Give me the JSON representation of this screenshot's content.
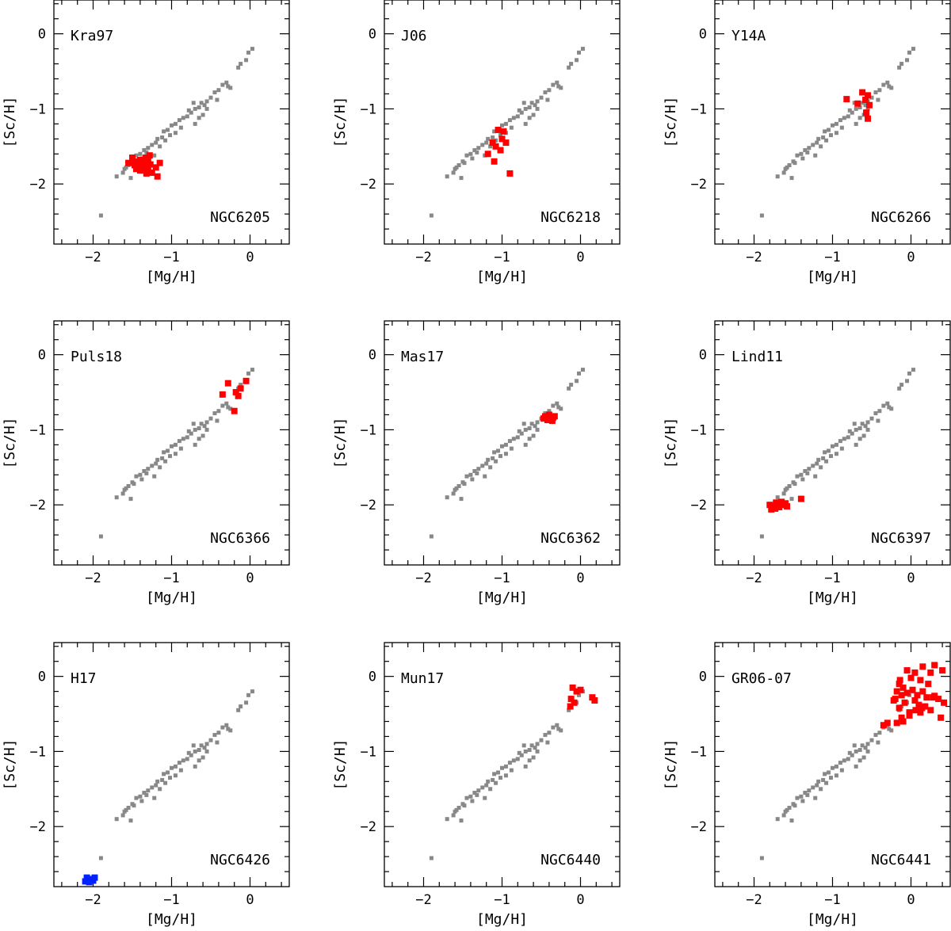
{
  "figure": {
    "xlabel": "[Mg/H]",
    "ylabel": "[Sc/H]",
    "background_color": "#888888",
    "highlight_color": "#ff0000",
    "alt_highlight_color": "#0022ff"
  },
  "chart_data": [
    {
      "type": "scatter",
      "panel_label": "Kra97",
      "cluster": "NGC6205",
      "xlabel": "[Mg/H]",
      "ylabel": "[Sc/H]",
      "xlim": [
        -2.5,
        0.5
      ],
      "ylim": [
        -2.8,
        0.45
      ],
      "xticks": [
        -2,
        -1,
        0
      ],
      "yticks": [
        0,
        -1,
        -2
      ],
      "grid": false,
      "series": [
        {
          "color": "#ff0000",
          "x": [
            -1.55,
            -1.5,
            -1.47,
            -1.43,
            -1.4,
            -1.37,
            -1.35,
            -1.33,
            -1.3,
            -1.28,
            -1.45,
            -1.4,
            -1.33,
            -1.27,
            -1.2,
            -1.25,
            -1.37,
            -1.32,
            -1.15,
            -1.18,
            -1.3,
            -1.42,
            -1.48,
            -1.35
          ],
          "y": [
            -1.72,
            -1.65,
            -1.75,
            -1.7,
            -1.68,
            -1.78,
            -1.72,
            -1.65,
            -1.7,
            -1.62,
            -1.8,
            -1.82,
            -1.76,
            -1.74,
            -1.78,
            -1.85,
            -1.7,
            -1.86,
            -1.72,
            -1.9,
            -1.8,
            -1.75,
            -1.72,
            -1.68
          ]
        }
      ]
    },
    {
      "type": "scatter",
      "panel_label": "J06",
      "cluster": "NGC6218",
      "xlabel": "[Mg/H]",
      "ylabel": "[Sc/H]",
      "xlim": [
        -2.5,
        0.5
      ],
      "ylim": [
        -2.8,
        0.45
      ],
      "xticks": [
        -2,
        -1,
        0
      ],
      "yticks": [
        0,
        -1,
        -2
      ],
      "grid": false,
      "series": [
        {
          "color": "#ff0000",
          "x": [
            -1.05,
            -0.98,
            -1.12,
            -1.0,
            -1.08,
            -0.95,
            -1.18,
            -1.02,
            -1.1,
            -0.9
          ],
          "y": [
            -1.28,
            -1.3,
            -1.45,
            -1.4,
            -1.5,
            -1.45,
            -1.6,
            -1.55,
            -1.7,
            -1.86
          ]
        }
      ]
    },
    {
      "type": "scatter",
      "panel_label": "Y14A",
      "cluster": "NGC6266",
      "xlabel": "[Mg/H]",
      "ylabel": "[Sc/H]",
      "xlim": [
        -2.5,
        0.5
      ],
      "ylim": [
        -2.8,
        0.45
      ],
      "xticks": [
        -2,
        -1,
        0
      ],
      "yticks": [
        0,
        -1,
        -2
      ],
      "grid": false,
      "series": [
        {
          "color": "#ff0000",
          "x": [
            -0.62,
            -0.55,
            -0.58,
            -0.68,
            -0.82,
            -0.53,
            -0.57,
            -0.55
          ],
          "y": [
            -0.78,
            -0.82,
            -0.88,
            -0.93,
            -0.87,
            -0.95,
            -1.05,
            -1.13
          ]
        }
      ]
    },
    {
      "type": "scatter",
      "panel_label": "Puls18",
      "cluster": "NGC6366",
      "xlabel": "[Mg/H]",
      "ylabel": "[Sc/H]",
      "xlim": [
        -2.5,
        0.5
      ],
      "ylim": [
        -2.8,
        0.45
      ],
      "xticks": [
        -2,
        -1,
        0
      ],
      "yticks": [
        0,
        -1,
        -2
      ],
      "grid": false,
      "series": [
        {
          "color": "#ff0000",
          "x": [
            -0.05,
            -0.28,
            -0.12,
            -0.18,
            -0.35,
            -0.15,
            -0.2
          ],
          "y": [
            -0.35,
            -0.38,
            -0.45,
            -0.5,
            -0.53,
            -0.55,
            -0.75
          ]
        }
      ]
    },
    {
      "type": "scatter",
      "panel_label": "Mas17",
      "cluster": "NGC6362",
      "xlabel": "[Mg/H]",
      "ylabel": "[Sc/H]",
      "xlim": [
        -2.5,
        0.5
      ],
      "ylim": [
        -2.8,
        0.45
      ],
      "xticks": [
        -2,
        -1,
        0
      ],
      "yticks": [
        0,
        -1,
        -2
      ],
      "grid": false,
      "series": [
        {
          "color": "#ff0000",
          "x": [
            -0.45,
            -0.4,
            -0.35,
            -0.42,
            -0.38,
            -0.33,
            -0.47,
            -0.36,
            -0.41
          ],
          "y": [
            -0.82,
            -0.8,
            -0.84,
            -0.87,
            -0.85,
            -0.82,
            -0.85,
            -0.88,
            -0.84
          ]
        }
      ]
    },
    {
      "type": "scatter",
      "panel_label": "Lind11",
      "cluster": "NGC6397",
      "xlabel": "[Mg/H]",
      "ylabel": "[Sc/H]",
      "xlim": [
        -2.5,
        0.5
      ],
      "ylim": [
        -2.8,
        0.45
      ],
      "xticks": [
        -2,
        -1,
        0
      ],
      "yticks": [
        0,
        -1,
        -2
      ],
      "grid": false,
      "series": [
        {
          "color": "#ff0000",
          "x": [
            -1.8,
            -1.75,
            -1.7,
            -1.65,
            -1.62,
            -1.58,
            -1.73,
            -1.68,
            -1.78,
            -1.6,
            -1.66,
            -1.72,
            -1.4
          ],
          "y": [
            -2.0,
            -2.02,
            -1.98,
            -1.96,
            -2.0,
            -2.02,
            -2.05,
            -2.03,
            -2.06,
            -1.98,
            -2.0,
            -1.97,
            -1.92
          ]
        }
      ]
    },
    {
      "type": "scatter",
      "panel_label": "H17",
      "cluster": "NGC6426",
      "xlabel": "[Mg/H]",
      "ylabel": "[Sc/H]",
      "xlim": [
        -2.5,
        0.5
      ],
      "ylim": [
        -2.8,
        0.45
      ],
      "xticks": [
        -2,
        -1,
        0
      ],
      "yticks": [
        0,
        -1,
        -2
      ],
      "grid": false,
      "series": [
        {
          "color": "#0022ff",
          "x": [
            -2.08,
            -2.03,
            -1.98,
            -2.1,
            -2.05,
            -2.0
          ],
          "y": [
            -2.68,
            -2.7,
            -2.68,
            -2.73,
            -2.74,
            -2.72
          ]
        }
      ]
    },
    {
      "type": "scatter",
      "panel_label": "Mun17",
      "cluster": "NGC6440",
      "xlabel": "[Mg/H]",
      "ylabel": "[Sc/H]",
      "xlim": [
        -2.5,
        0.5
      ],
      "ylim": [
        -2.8,
        0.45
      ],
      "xticks": [
        -2,
        -1,
        0
      ],
      "yticks": [
        0,
        -1,
        -2
      ],
      "grid": false,
      "series": [
        {
          "color": "#ff0000",
          "x": [
            -0.1,
            -0.05,
            0.0,
            0.15,
            -0.12,
            -0.08,
            0.18,
            -0.13
          ],
          "y": [
            -0.15,
            -0.2,
            -0.18,
            -0.28,
            -0.3,
            -0.35,
            -0.32,
            -0.4
          ]
        }
      ]
    },
    {
      "type": "scatter",
      "panel_label": "GR06-07",
      "cluster": "NGC6441",
      "xlabel": "[Mg/H]",
      "ylabel": "[Sc/H]",
      "xlim": [
        -2.5,
        0.5
      ],
      "ylim": [
        -2.8,
        0.45
      ],
      "xticks": [
        -2,
        -1,
        0
      ],
      "yticks": [
        0,
        -1,
        -2
      ],
      "grid": false,
      "series": [
        {
          "color": "#ff0000",
          "x": [
            0.4,
            0.25,
            0.3,
            0.15,
            0.05,
            -0.05,
            0.0,
            0.12,
            0.22,
            -0.15,
            -0.1,
            -0.18,
            -0.12,
            -0.05,
            0.02,
            0.08,
            0.15,
            0.2,
            0.28,
            0.35,
            0.42,
            -0.2,
            -0.08,
            0.05,
            0.1,
            0.18,
            0.25,
            -0.15,
            -0.02,
            0.12,
            -0.12,
            -0.18,
            -0.1,
            -0.02,
            0.06,
            0.38,
            -0.3,
            -0.35,
            -0.22,
            -0.14,
            0.14,
            0.3
          ],
          "y": [
            0.08,
            0.05,
            0.15,
            0.13,
            0.05,
            0.08,
            -0.02,
            -0.05,
            -0.1,
            -0.1,
            -0.15,
            -0.2,
            -0.25,
            -0.22,
            -0.18,
            -0.25,
            -0.2,
            -0.28,
            -0.28,
            -0.3,
            -0.35,
            -0.3,
            -0.35,
            -0.32,
            -0.38,
            -0.4,
            -0.45,
            -0.42,
            -0.48,
            -0.48,
            -0.55,
            -0.62,
            -0.6,
            -0.52,
            -0.45,
            -0.55,
            -0.62,
            -0.65,
            -0.32,
            -0.05,
            -0.42,
            -0.26
          ]
        }
      ]
    }
  ],
  "reference_points": {
    "color": "#888888",
    "x": [
      0.03,
      -0.02,
      -0.05,
      -0.12,
      -0.15,
      -0.3,
      -0.35,
      -0.25,
      -0.4,
      -0.45,
      -0.5,
      -0.55,
      -0.58,
      -0.62,
      -0.65,
      -0.7,
      -0.75,
      -0.8,
      -0.55,
      -0.6,
      -0.85,
      -0.9,
      -0.95,
      -1.0,
      -1.05,
      -1.1,
      -1.12,
      -1.18,
      -1.2,
      -1.25,
      -1.3,
      -1.35,
      -1.4,
      -1.45,
      -1.5,
      -1.55,
      -1.6,
      -1.62,
      -1.7,
      -1.9,
      -0.65,
      -0.72,
      -0.88,
      -1.02,
      -1.15,
      -1.22,
      -1.38,
      -1.48,
      -1.58,
      -0.78,
      -0.95,
      -0.7,
      -1.08,
      -1.32,
      -0.42,
      -0.28,
      -1.52
    ],
    "y": [
      -0.2,
      -0.25,
      -0.35,
      -0.4,
      -0.45,
      -0.65,
      -0.68,
      -0.72,
      -0.75,
      -0.78,
      -0.85,
      -0.9,
      -0.95,
      -0.92,
      -0.98,
      -1.0,
      -1.05,
      -1.1,
      -1.0,
      -1.08,
      -1.12,
      -1.15,
      -1.2,
      -1.22,
      -1.28,
      -1.3,
      -1.38,
      -1.4,
      -1.45,
      -1.48,
      -1.52,
      -1.55,
      -1.6,
      -1.62,
      -1.7,
      -1.75,
      -1.8,
      -1.85,
      -1.9,
      -2.42,
      -1.12,
      -0.92,
      -1.25,
      -1.35,
      -1.5,
      -1.62,
      -1.66,
      -1.72,
      -1.78,
      -1.02,
      -1.32,
      -1.2,
      -1.42,
      -1.58,
      -0.88,
      -0.7,
      -1.92
    ]
  }
}
